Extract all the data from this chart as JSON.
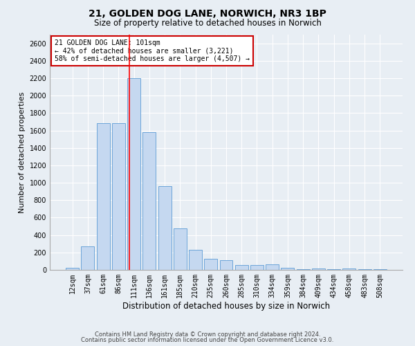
{
  "title_line1": "21, GOLDEN DOG LANE, NORWICH, NR3 1BP",
  "title_line2": "Size of property relative to detached houses in Norwich",
  "xlabel": "Distribution of detached houses by size in Norwich",
  "ylabel": "Number of detached properties",
  "footnote1": "Contains HM Land Registry data © Crown copyright and database right 2024.",
  "footnote2": "Contains public sector information licensed under the Open Government Licence v3.0.",
  "annotation_line1": "21 GOLDEN DOG LANE: 101sqm",
  "annotation_line2": "← 42% of detached houses are smaller (3,221)",
  "annotation_line3": "58% of semi-detached houses are larger (4,507) →",
  "bar_labels": [
    "12sqm",
    "37sqm",
    "61sqm",
    "86sqm",
    "111sqm",
    "136sqm",
    "161sqm",
    "185sqm",
    "210sqm",
    "235sqm",
    "260sqm",
    "285sqm",
    "310sqm",
    "334sqm",
    "359sqm",
    "384sqm",
    "409sqm",
    "434sqm",
    "458sqm",
    "483sqm",
    "508sqm"
  ],
  "bar_values": [
    20,
    270,
    1680,
    1680,
    2200,
    1580,
    960,
    480,
    230,
    130,
    110,
    55,
    55,
    65,
    25,
    10,
    18,
    5,
    12,
    4,
    8
  ],
  "bar_color": "#c5d8f0",
  "bar_edge_color": "#5b9bd5",
  "red_line_index": 3.72,
  "ylim": [
    0,
    2700
  ],
  "yticks": [
    0,
    200,
    400,
    600,
    800,
    1000,
    1200,
    1400,
    1600,
    1800,
    2000,
    2200,
    2400,
    2600
  ],
  "bg_color": "#e8eef4",
  "plot_bg_color": "#e8eef4",
  "grid_color": "#ffffff",
  "annotation_box_bg": "#ffffff",
  "annotation_box_edge": "#cc0000",
  "title_fontsize": 10,
  "subtitle_fontsize": 8.5,
  "ylabel_fontsize": 8,
  "xlabel_fontsize": 8.5,
  "tick_fontsize": 7,
  "footnote_fontsize": 6
}
